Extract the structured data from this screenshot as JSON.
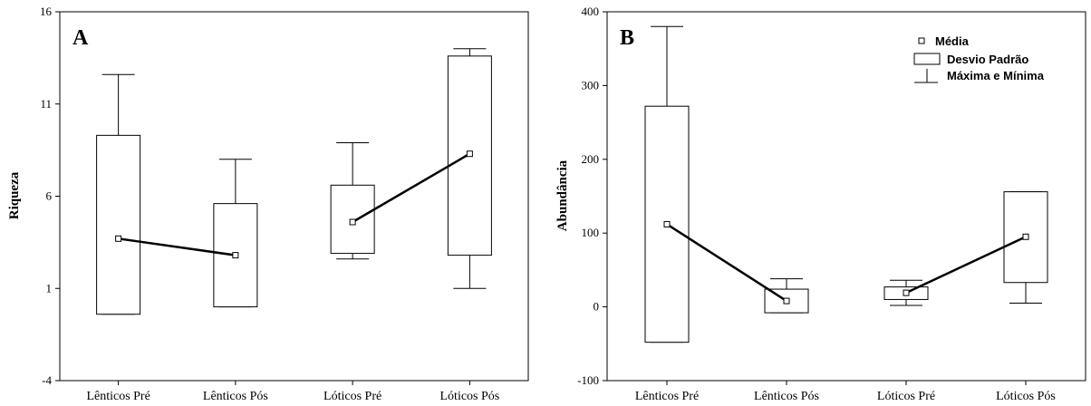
{
  "chart_data": [
    {
      "type": "box",
      "panel_label": "A",
      "xlabel": "",
      "ylabel": "Riqueza",
      "ylim": [
        -4,
        16
      ],
      "yticks": [
        -4,
        1,
        6,
        11,
        16
      ],
      "categories": [
        "Lênticos Pré",
        "Lênticos Pós",
        "Lóticos Pré",
        "Lóticos Pós"
      ],
      "series": [
        {
          "mean": [
            3.7,
            2.8,
            4.6,
            8.3
          ],
          "sd_low": [
            -0.4,
            0.0,
            2.9,
            2.8
          ],
          "sd_high": [
            9.3,
            5.6,
            6.6,
            13.6
          ],
          "min": [
            -0.4,
            0.0,
            2.6,
            1.0
          ],
          "max": [
            12.6,
            8.0,
            8.9,
            14.0
          ]
        }
      ],
      "mean_lines": [
        [
          0,
          1
        ],
        [
          2,
          3
        ]
      ],
      "legend": null
    },
    {
      "type": "box",
      "panel_label": "B",
      "xlabel": "",
      "ylabel": "Abundância",
      "ylim": [
        -100,
        400
      ],
      "yticks": [
        -100,
        0,
        100,
        200,
        300,
        400
      ],
      "categories": [
        "Lênticos Pré",
        "Lênticos Pós",
        "Lóticos Pré",
        "Lóticos Pós"
      ],
      "series": [
        {
          "mean": [
            112,
            8,
            19,
            95
          ],
          "sd_low": [
            -48,
            -8,
            10,
            33
          ],
          "sd_high": [
            272,
            24,
            27,
            156
          ],
          "min": [
            -48,
            -8,
            2,
            5
          ],
          "max": [
            380,
            38,
            36,
            156
          ]
        }
      ],
      "mean_lines": [
        [
          0,
          1
        ],
        [
          2,
          3
        ]
      ],
      "legend": {
        "placement": "top-right",
        "mean": "Média",
        "sd": "Desvio Padrão",
        "range": "Máxima e Mínima"
      }
    }
  ]
}
